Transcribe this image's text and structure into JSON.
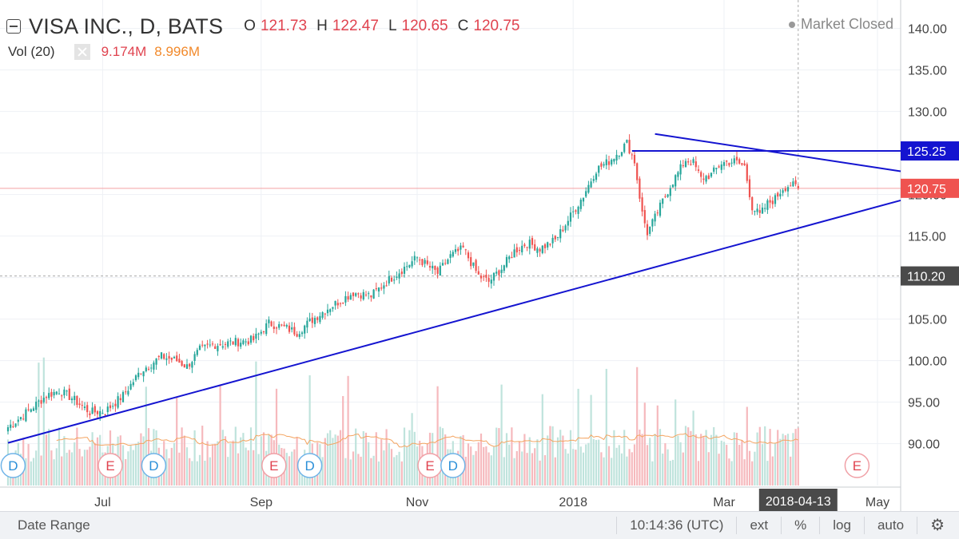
{
  "header": {
    "symbol_title": "VISA INC., D, BATS",
    "ohlc": [
      {
        "label": "O",
        "value": "121.73"
      },
      {
        "label": "H",
        "value": "122.47"
      },
      {
        "label": "L",
        "value": "120.65"
      },
      {
        "label": "C",
        "value": "120.75"
      }
    ],
    "volume_label": "Vol (20)",
    "volume_value": "9.174M",
    "volume_ma": "8.996M",
    "market_status": "Market Closed"
  },
  "colors": {
    "up": "#26a69a",
    "down": "#ef5350",
    "trendline": "#1414d0",
    "price_tag": "#ef5350",
    "level_tag": "#1414d0",
    "crosshair_tag": "#4a4a4a"
  },
  "chart_data": {
    "type": "candlestick",
    "y_ticks": [
      "140.00",
      "135.00",
      "130.00",
      "125.00",
      "120.00",
      "115.00",
      "110.00",
      "105.00",
      "100.00",
      "95.00",
      "90.00"
    ],
    "y_range": [
      86.7,
      141.5
    ],
    "x_ticks": [
      {
        "label": "Jul",
        "day": 37
      },
      {
        "label": "Sep",
        "day": 99
      },
      {
        "label": "Nov",
        "day": 160
      },
      {
        "label": "2018",
        "day": 221
      },
      {
        "label": "Mar",
        "day": 280
      },
      {
        "label": "May",
        "day": 340
      }
    ],
    "start_date": "2017-05-25",
    "last_price": 120.75,
    "last_ohlc": {
      "open": 121.73,
      "high": 122.47,
      "low": 120.65,
      "close": 120.75
    },
    "price_tags": [
      {
        "value": 125.25,
        "label": "125.25",
        "kind": "level"
      },
      {
        "value": 120.75,
        "label": "120.75",
        "kind": "last"
      },
      {
        "value": 110.2,
        "label": "110.20",
        "kind": "crosshair"
      }
    ],
    "crosshair_date": "2018-04-13",
    "trendlines": [
      {
        "name": "support",
        "from": {
          "day": 0,
          "value": 90.1
        },
        "to": {
          "day": 371,
          "value": 119.3
        }
      },
      {
        "name": "resistance",
        "from": {
          "day": 253,
          "value": 127.3
        },
        "to": {
          "day": 371,
          "value": 122.8
        }
      },
      {
        "name": "horizontal",
        "from": {
          "day": 244,
          "value": 125.25
        },
        "to": {
          "day": 371,
          "value": 125.25
        }
      }
    ],
    "price_anchors": [
      [
        0,
        92.0
      ],
      [
        5,
        93.2
      ],
      [
        15,
        95.8
      ],
      [
        20,
        96.4
      ],
      [
        25,
        95.5
      ],
      [
        32,
        93.8
      ],
      [
        38,
        93.9
      ],
      [
        45,
        95.8
      ],
      [
        52,
        98.8
      ],
      [
        60,
        100.5
      ],
      [
        66,
        100.0
      ],
      [
        70,
        99.3
      ],
      [
        75,
        101.3
      ],
      [
        80,
        101.9
      ],
      [
        88,
        102.2
      ],
      [
        96,
        102.5
      ],
      [
        102,
        104.5
      ],
      [
        108,
        104.0
      ],
      [
        113,
        103.4
      ],
      [
        118,
        104.7
      ],
      [
        125,
        106.3
      ],
      [
        135,
        108.2
      ],
      [
        142,
        107.8
      ],
      [
        148,
        109.5
      ],
      [
        155,
        111.2
      ],
      [
        160,
        112.4
      ],
      [
        168,
        110.5
      ],
      [
        173,
        112.6
      ],
      [
        178,
        113.5
      ],
      [
        184,
        110.2
      ],
      [
        188,
        109.5
      ],
      [
        193,
        111.1
      ],
      [
        198,
        113.2
      ],
      [
        203,
        114.2
      ],
      [
        208,
        113.5
      ],
      [
        214,
        114.5
      ],
      [
        220,
        117.4
      ],
      [
        225,
        119.9
      ],
      [
        230,
        123.0
      ],
      [
        235,
        124.0
      ],
      [
        239,
        125.2
      ],
      [
        242,
        126.2
      ],
      [
        245,
        124.0
      ],
      [
        248,
        117.7
      ],
      [
        250,
        115.4
      ],
      [
        253,
        117.2
      ],
      [
        256,
        119.2
      ],
      [
        259,
        121.1
      ],
      [
        262,
        122.6
      ],
      [
        265,
        124.2
      ],
      [
        268,
        123.8
      ],
      [
        271,
        121.9
      ],
      [
        275,
        122.4
      ],
      [
        279,
        123.8
      ],
      [
        284,
        124.0
      ],
      [
        288,
        123.4
      ],
      [
        291,
        118.5
      ],
      [
        294,
        117.5
      ],
      [
        297,
        118.9
      ],
      [
        300,
        119.5
      ],
      [
        303,
        120.8
      ],
      [
        306,
        121.2
      ],
      [
        309,
        120.75
      ]
    ],
    "volume_events": [
      {
        "day": 2,
        "label": "D"
      },
      {
        "day": 40,
        "label": "E"
      },
      {
        "day": 57,
        "label": "D"
      },
      {
        "day": 104,
        "label": "E"
      },
      {
        "day": 118,
        "label": "D"
      },
      {
        "day": 165,
        "label": "E"
      },
      {
        "day": 174,
        "label": "D"
      },
      {
        "day": 332,
        "label": "E"
      }
    ]
  },
  "bottom_bar": {
    "date_range": "Date Range",
    "time": "10:14:36 (UTC)",
    "ext": "ext",
    "percent": "%",
    "log": "log",
    "auto": "auto"
  }
}
